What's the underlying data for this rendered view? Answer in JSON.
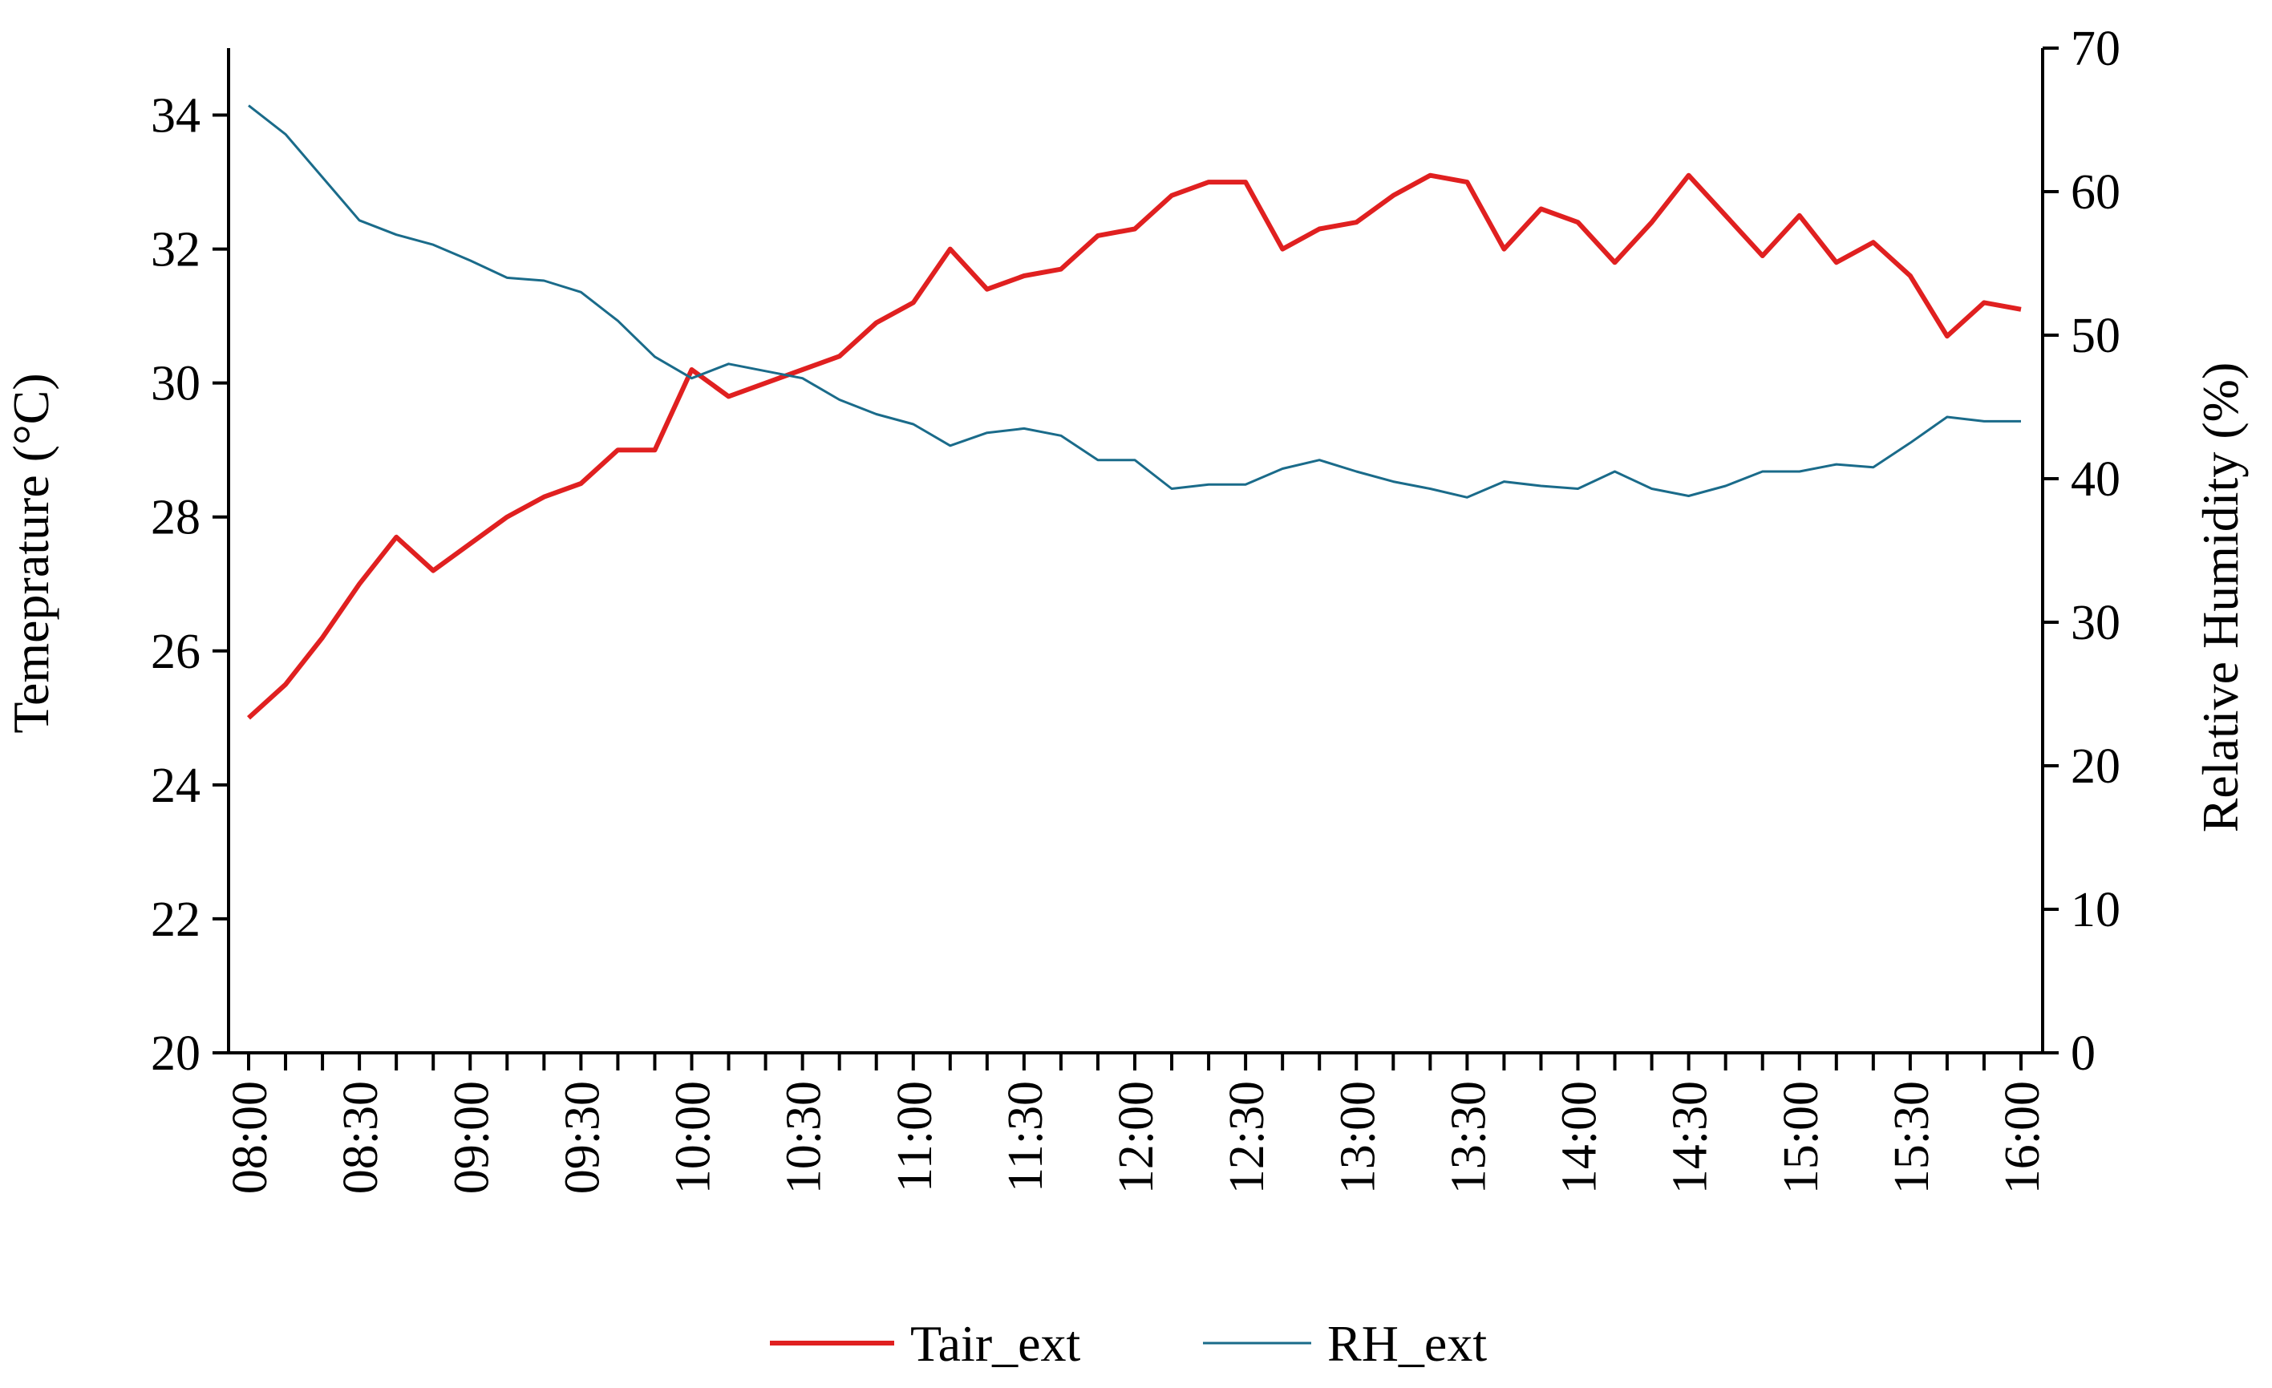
{
  "chart_data": {
    "type": "line",
    "title": "",
    "xlabel": "",
    "y_left_label": "Temeprature (°C)",
    "y_right_label": "Relative Humidity  (%)",
    "y_left_lim": [
      20,
      35
    ],
    "y_left_ticks": [
      20,
      22,
      24,
      26,
      28,
      30,
      32,
      34
    ],
    "y_right_lim": [
      0,
      70
    ],
    "y_right_ticks": [
      0,
      10,
      20,
      30,
      40,
      50,
      60,
      70
    ],
    "x_tick_labels": [
      "08:00",
      "08:30",
      "09:00",
      "09:30",
      "10:00",
      "10:30",
      "11:00",
      "11:30",
      "12:00",
      "12:30",
      "13:00",
      "13:30",
      "14:00",
      "14:30",
      "15:00",
      "15:30",
      "16:00"
    ],
    "x": [
      "08:00",
      "08:10",
      "08:20",
      "08:30",
      "08:40",
      "08:50",
      "09:00",
      "09:10",
      "09:20",
      "09:30",
      "09:40",
      "09:50",
      "10:00",
      "10:10",
      "10:20",
      "10:30",
      "10:40",
      "10:50",
      "11:00",
      "11:10",
      "11:20",
      "11:30",
      "11:40",
      "11:50",
      "12:00",
      "12:10",
      "12:20",
      "12:30",
      "12:40",
      "12:50",
      "13:00",
      "13:10",
      "13:20",
      "13:30",
      "13:40",
      "13:50",
      "14:00",
      "14:10",
      "14:20",
      "14:30",
      "14:40",
      "14:50",
      "15:00",
      "15:10",
      "15:20",
      "15:30",
      "15:40",
      "15:50",
      "16:00"
    ],
    "grid": false,
    "legend_position": "bottom",
    "series": [
      {
        "name": "Tair_ext",
        "axis": "left",
        "color": "#e02020",
        "values": [
          25.0,
          25.5,
          26.2,
          27.0,
          27.7,
          27.2,
          27.6,
          28.0,
          28.3,
          28.5,
          29.0,
          29.0,
          30.2,
          29.8,
          30.0,
          30.2,
          30.4,
          30.9,
          31.2,
          32.0,
          31.4,
          31.6,
          31.7,
          32.2,
          32.3,
          32.8,
          33.0,
          33.0,
          32.0,
          32.3,
          32.4,
          32.8,
          33.1,
          33.0,
          32.0,
          32.6,
          32.4,
          31.8,
          32.4,
          33.1,
          32.5,
          31.9,
          32.5,
          31.8,
          32.1,
          31.6,
          30.7,
          31.2,
          31.1
        ]
      },
      {
        "name": "RH_ext",
        "axis": "right",
        "color": "#1a6b8a",
        "values": [
          66.0,
          64.0,
          61.0,
          58.0,
          57.0,
          56.3,
          55.2,
          54.0,
          53.8,
          53.0,
          51.0,
          48.5,
          47.0,
          48.0,
          47.5,
          47.0,
          45.5,
          44.5,
          43.8,
          42.3,
          43.2,
          43.5,
          43.0,
          41.3,
          41.3,
          39.3,
          39.6,
          39.6,
          40.7,
          41.3,
          40.5,
          39.8,
          39.3,
          38.7,
          39.8,
          39.5,
          39.3,
          40.5,
          39.3,
          38.8,
          39.5,
          40.5,
          40.5,
          41.0,
          40.8,
          42.5,
          44.3,
          44.0,
          44.0
        ]
      }
    ]
  }
}
